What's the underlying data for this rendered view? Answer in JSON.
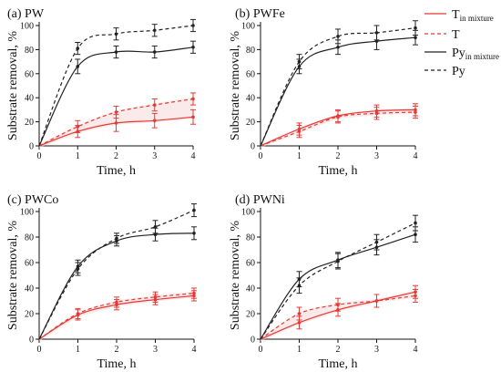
{
  "colors": {
    "pyridine": "#222222",
    "thiophene": "#e53935",
    "band": "#f7d9d9"
  },
  "legend": {
    "items": [
      {
        "main": "T",
        "sub": "in mixture",
        "color": "#e53935",
        "dash": false
      },
      {
        "main": "T",
        "sub": "",
        "color": "#e53935",
        "dash": true
      },
      {
        "main": "Py",
        "sub": "in mixture",
        "color": "#222222",
        "dash": false
      },
      {
        "main": "Py",
        "sub": "",
        "color": "#222222",
        "dash": true
      }
    ]
  },
  "chart_data": [
    {
      "type": "line",
      "title": "(a) PW",
      "xlabel": "Time, h",
      "ylabel": "Substrate removal, %",
      "xlim": [
        0,
        4
      ],
      "ylim": [
        0,
        100
      ],
      "xticks": [
        0,
        1,
        2,
        3,
        4
      ],
      "yticks": [
        0,
        20,
        40,
        60,
        80,
        100
      ],
      "x": [
        0,
        1,
        2,
        3,
        4
      ],
      "series": [
        {
          "name": "T in mixture",
          "values": [
            0,
            12,
            19,
            21,
            24
          ],
          "err": [
            0,
            5,
            7,
            6,
            6
          ]
        },
        {
          "name": "T",
          "values": [
            0,
            16,
            28,
            34,
            39
          ],
          "err": [
            0,
            5,
            5,
            5,
            5
          ]
        },
        {
          "name": "Py in mixture",
          "values": [
            0,
            66,
            78,
            78,
            82
          ],
          "err": [
            0,
            6,
            5,
            5,
            5
          ]
        },
        {
          "name": "Py",
          "values": [
            0,
            81,
            93,
            96,
            100
          ],
          "err": [
            0,
            5,
            5,
            5,
            5
          ]
        }
      ]
    },
    {
      "type": "line",
      "title": "(b) PWFe",
      "xlabel": "Time, h",
      "ylabel": "Substrate removal, %",
      "xlim": [
        0,
        4
      ],
      "ylim": [
        0,
        100
      ],
      "xticks": [
        0,
        1,
        2,
        3,
        4
      ],
      "yticks": [
        0,
        20,
        40,
        60,
        80,
        100
      ],
      "x": [
        0,
        1,
        2,
        3,
        4
      ],
      "series": [
        {
          "name": "T in mixture",
          "values": [
            0,
            14,
            25,
            29,
            30
          ],
          "err": [
            0,
            5,
            5,
            5,
            5
          ]
        },
        {
          "name": "T",
          "values": [
            0,
            12,
            24,
            27,
            28
          ],
          "err": [
            0,
            5,
            5,
            5,
            5
          ]
        },
        {
          "name": "Py in mixture",
          "values": [
            0,
            66,
            82,
            87,
            90
          ],
          "err": [
            0,
            6,
            6,
            7,
            6
          ]
        },
        {
          "name": "Py",
          "values": [
            0,
            70,
            91,
            94,
            98
          ],
          "err": [
            0,
            6,
            6,
            6,
            6
          ]
        }
      ]
    },
    {
      "type": "line",
      "title": "(c) PWCo",
      "xlabel": "Time, h",
      "ylabel": "Substrate removal, %",
      "xlim": [
        0,
        4
      ],
      "ylim": [
        0,
        100
      ],
      "xticks": [
        0,
        1,
        2,
        3,
        4
      ],
      "yticks": [
        0,
        20,
        40,
        60,
        80,
        100
      ],
      "x": [
        0,
        1,
        2,
        3,
        4
      ],
      "series": [
        {
          "name": "T in mixture",
          "values": [
            0,
            19,
            27,
            31,
            34
          ],
          "err": [
            0,
            4,
            4,
            4,
            4
          ]
        },
        {
          "name": "T",
          "values": [
            0,
            20,
            29,
            33,
            36
          ],
          "err": [
            0,
            4,
            4,
            4,
            4
          ]
        },
        {
          "name": "Py in mixture",
          "values": [
            0,
            57,
            77,
            82,
            83
          ],
          "err": [
            0,
            5,
            4,
            5,
            5
          ]
        },
        {
          "name": "Py",
          "values": [
            0,
            55,
            79,
            88,
            101
          ],
          "err": [
            0,
            5,
            4,
            5,
            5
          ]
        }
      ]
    },
    {
      "type": "line",
      "title": "(d) PWNi",
      "xlabel": "Time, h",
      "ylabel": "Substrate removal, %",
      "xlim": [
        0,
        4
      ],
      "ylim": [
        0,
        100
      ],
      "xticks": [
        0,
        1,
        2,
        3,
        4
      ],
      "yticks": [
        0,
        20,
        40,
        60,
        80,
        100
      ],
      "x": [
        0,
        1,
        2,
        3,
        4
      ],
      "series": [
        {
          "name": "T in mixture",
          "values": [
            0,
            13,
            23,
            30,
            37
          ],
          "err": [
            0,
            5,
            5,
            5,
            5
          ]
        },
        {
          "name": "T",
          "values": [
            0,
            20,
            27,
            30,
            34
          ],
          "err": [
            0,
            5,
            5,
            5,
            5
          ]
        },
        {
          "name": "Py in mixture",
          "values": [
            0,
            47,
            62,
            72,
            82
          ],
          "err": [
            0,
            6,
            6,
            6,
            6
          ]
        },
        {
          "name": "Py",
          "values": [
            0,
            42,
            61,
            76,
            91
          ],
          "err": [
            0,
            6,
            6,
            6,
            6
          ]
        }
      ]
    }
  ]
}
